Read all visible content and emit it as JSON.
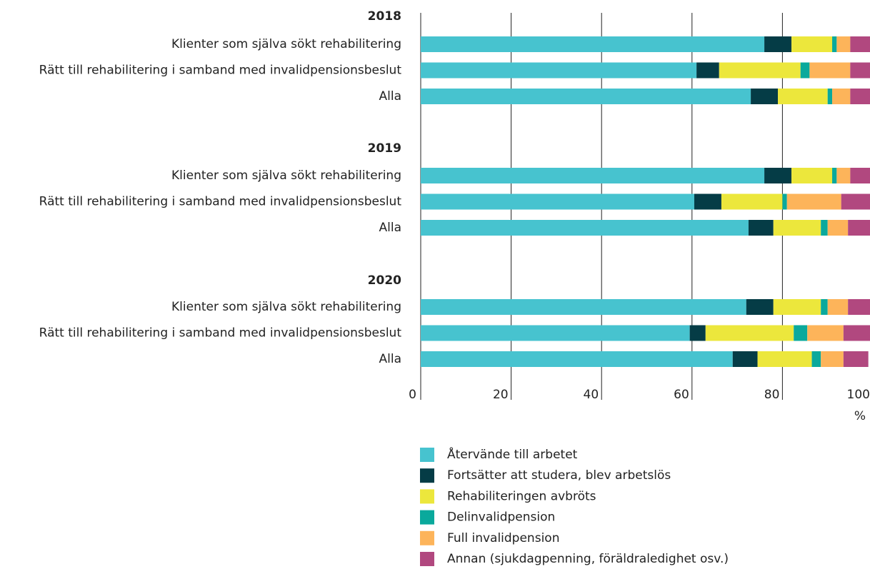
{
  "chart_data": {
    "type": "stacked-barh",
    "groups": [
      "2018",
      "2019",
      "2020"
    ],
    "categories": [
      "Klienter som själva sökt rehabilitering",
      "Rätt till rehabilitering i samband med invalidpensionsbeslut",
      "Alla",
      "Klienter som själva sökt rehabilitering",
      "Rätt till rehabilitering i samband med invalidpensionsbeslut",
      "Alla",
      "Klienter som själva sökt rehabilitering",
      "Rätt till rehabilitering i samband med invalidpensionsbeslut",
      "Alla"
    ],
    "series": [
      {
        "name": "Återvände till arbetet",
        "color": "#47c3cf",
        "values": [
          76,
          61,
          73,
          76,
          60.5,
          72.5,
          72,
          59.5,
          69
        ]
      },
      {
        "name": "Fortsätter att studera, blev arbetslös",
        "color": "#053c46",
        "values": [
          6,
          5,
          6,
          6,
          6,
          5.5,
          6,
          3.5,
          5.5
        ]
      },
      {
        "name": "Rehabiliteringen avbröts",
        "color": "#ece73c",
        "values": [
          9,
          18,
          11,
          9,
          13.5,
          10.5,
          10.5,
          19.5,
          12
        ]
      },
      {
        "name": "Delinvalidpension",
        "color": "#0aa99c",
        "values": [
          1,
          2,
          1,
          1,
          1,
          1.5,
          1.5,
          3,
          2
        ]
      },
      {
        "name": "Full invalidpension",
        "color": "#fdb45a",
        "values": [
          3,
          9,
          4,
          3,
          12,
          4.5,
          4.5,
          8,
          5
        ]
      },
      {
        "name": "Annan (sjukdagpenning, föräldraledighet osv.)",
        "color": "#b1487f",
        "values": [
          5,
          5,
          5,
          5,
          7,
          5,
          5.5,
          6,
          5.5
        ]
      }
    ],
    "xlim": [
      0,
      100
    ],
    "xticks": [
      0,
      20,
      40,
      60,
      80,
      100
    ],
    "xlabel": "%",
    "grid": true
  }
}
